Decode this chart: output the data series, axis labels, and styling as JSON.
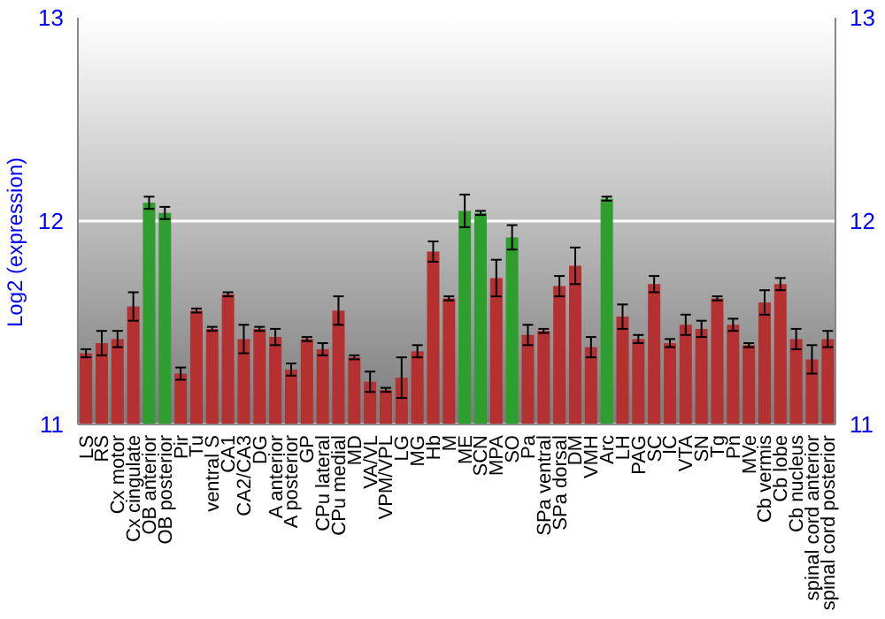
{
  "chart_data": {
    "type": "bar",
    "ylabel": "Log2 (expression)",
    "categories": [
      "LS",
      "RS",
      "Cx motor",
      "Cx cingulate",
      "OB anterior",
      "OB posterior",
      "Pir",
      "Tu",
      "ventral S",
      "CA1",
      "CA2/CA3",
      "DG",
      "A anterior",
      "A posterior",
      "GP",
      "CPu lateral",
      "CPu medial",
      "MD",
      "VA/VL",
      "VPM/VPL",
      "LG",
      "MG",
      "Hb",
      "M",
      "ME",
      "SCN",
      "MPA",
      "SO",
      "Pa",
      "SPa ventral",
      "SPa dorsal",
      "DM",
      "VMH",
      "Arc",
      "LH",
      "PAG",
      "SC",
      "IC",
      "VTA",
      "SN",
      "Tg",
      "Pn",
      "MVe",
      "Cb vermis",
      "Cb lobe",
      "Cb nucleus",
      "spinal cord anterior",
      "spinal cord posterior"
    ],
    "values": [
      11.35,
      11.4,
      11.42,
      11.58,
      12.09,
      12.04,
      11.25,
      11.56,
      11.47,
      11.64,
      11.42,
      11.47,
      11.43,
      11.27,
      11.42,
      11.37,
      11.56,
      11.33,
      11.21,
      11.17,
      11.23,
      11.36,
      11.85,
      11.62,
      12.05,
      12.04,
      11.72,
      11.92,
      11.44,
      11.46,
      11.68,
      11.78,
      11.38,
      12.11,
      11.53,
      11.42,
      11.69,
      11.4,
      11.49,
      11.47,
      11.62,
      11.49,
      11.39,
      11.6,
      11.69,
      11.42,
      11.32,
      11.42
    ],
    "errors": [
      0.02,
      0.06,
      0.04,
      0.07,
      0.03,
      0.03,
      0.03,
      0.01,
      0.01,
      0.01,
      0.07,
      0.01,
      0.04,
      0.03,
      0.01,
      0.03,
      0.07,
      0.01,
      0.05,
      0.01,
      0.1,
      0.03,
      0.05,
      0.01,
      0.08,
      0.01,
      0.09,
      0.06,
      0.05,
      0.01,
      0.05,
      0.09,
      0.05,
      0.01,
      0.06,
      0.02,
      0.04,
      0.02,
      0.05,
      0.04,
      0.01,
      0.03,
      0.01,
      0.06,
      0.03,
      0.05,
      0.07,
      0.04
    ],
    "colors": [
      "#b53131",
      "#b53131",
      "#b53131",
      "#b53131",
      "#2e9e2e",
      "#2e9e2e",
      "#b53131",
      "#b53131",
      "#b53131",
      "#b53131",
      "#b53131",
      "#b53131",
      "#b53131",
      "#b53131",
      "#b53131",
      "#b53131",
      "#b53131",
      "#b53131",
      "#b53131",
      "#b53131",
      "#b53131",
      "#b53131",
      "#b53131",
      "#b53131",
      "#2e9e2e",
      "#2e9e2e",
      "#b53131",
      "#2e9e2e",
      "#b53131",
      "#b53131",
      "#b53131",
      "#b53131",
      "#b53131",
      "#2e9e2e",
      "#b53131",
      "#b53131",
      "#b53131",
      "#b53131",
      "#b53131",
      "#b53131",
      "#b53131",
      "#b53131",
      "#b53131",
      "#b53131",
      "#b53131",
      "#b53131",
      "#b53131",
      "#b53131"
    ],
    "ylim": [
      11,
      13
    ],
    "yticks": [
      11,
      12,
      13
    ],
    "y2lim": [
      11,
      13
    ],
    "y2ticks": [
      11,
      12,
      13
    ],
    "grid": "y"
  }
}
